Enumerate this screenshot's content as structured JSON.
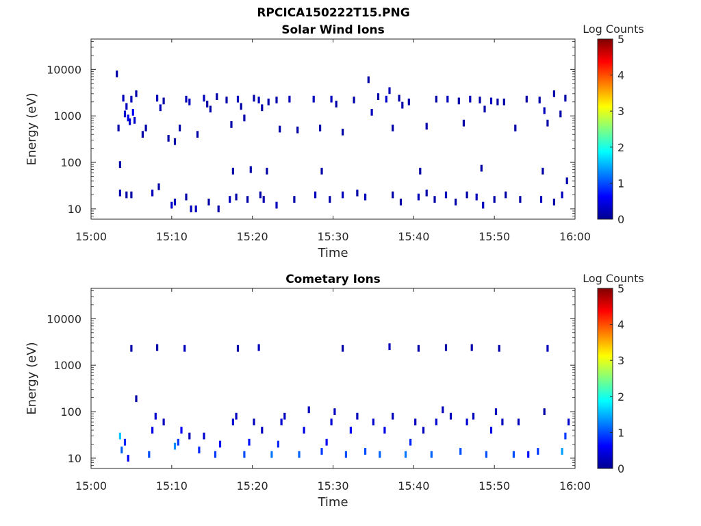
{
  "figure": {
    "title": "RPCICA150222T15.PNG"
  },
  "chart_data": [
    {
      "type": "heatmap",
      "title": "Solar Wind Ions",
      "xlabel": "Time",
      "ylabel": "Energy (eV)",
      "x_ticks": [
        "15:00",
        "15:10",
        "15:20",
        "15:30",
        "15:40",
        "15:50",
        "16:00"
      ],
      "xlim": [
        "15:00",
        "16:00"
      ],
      "y_scale": "log",
      "y_ticks": [
        "10",
        "100",
        "1000",
        "10000"
      ],
      "ylim": [
        6,
        45000
      ],
      "colorbar": {
        "label": "Log Counts",
        "ticks": [
          "0",
          "1",
          "2",
          "3",
          "4",
          "5"
        ],
        "range": [
          0,
          5
        ],
        "colormap": "jet"
      },
      "cells": [
        [
          3.2,
          8000,
          0.2
        ],
        [
          3.4,
          550,
          0.2
        ],
        [
          3.6,
          90,
          0.2
        ],
        [
          4.0,
          2400,
          0.3
        ],
        [
          4.2,
          1100,
          0.4
        ],
        [
          4.4,
          1600,
          0.3
        ],
        [
          4.6,
          900,
          0.5
        ],
        [
          4.8,
          750,
          0.4
        ],
        [
          5.0,
          2300,
          0.3
        ],
        [
          5.2,
          1200,
          0.6
        ],
        [
          5.4,
          800,
          0.4
        ],
        [
          5.6,
          3000,
          0.2
        ],
        [
          6.4,
          400,
          0.2
        ],
        [
          6.8,
          550,
          0.2
        ],
        [
          8.2,
          2400,
          0.3
        ],
        [
          8.6,
          1500,
          0.3
        ],
        [
          9.0,
          2100,
          0.2
        ],
        [
          9.6,
          330,
          0.2
        ],
        [
          10.4,
          280,
          0.2
        ],
        [
          11.0,
          550,
          0.2
        ],
        [
          11.8,
          2300,
          0.3
        ],
        [
          12.2,
          2000,
          0.3
        ],
        [
          13.2,
          400,
          0.2
        ],
        [
          14.0,
          2400,
          0.3
        ],
        [
          14.4,
          1800,
          0.2
        ],
        [
          14.8,
          1400,
          0.2
        ],
        [
          15.6,
          2600,
          0.2
        ],
        [
          16.8,
          2200,
          0.2
        ],
        [
          17.4,
          650,
          0.2
        ],
        [
          18.2,
          2300,
          0.3
        ],
        [
          18.6,
          1600,
          0.2
        ],
        [
          19.0,
          900,
          0.2
        ],
        [
          20.2,
          2400,
          0.2
        ],
        [
          20.8,
          2200,
          0.3
        ],
        [
          21.2,
          1500,
          0.2
        ],
        [
          22.0,
          2000,
          0.2
        ],
        [
          23.0,
          2200,
          0.2
        ],
        [
          23.4,
          520,
          0.2
        ],
        [
          24.6,
          2300,
          0.3
        ],
        [
          25.6,
          500,
          0.2
        ],
        [
          27.6,
          2300,
          0.3
        ],
        [
          28.4,
          550,
          0.2
        ],
        [
          29.8,
          2300,
          0.3
        ],
        [
          30.4,
          1800,
          0.2
        ],
        [
          31.2,
          450,
          0.2
        ],
        [
          32.6,
          2200,
          0.2
        ],
        [
          34.4,
          6000,
          0.2
        ],
        [
          34.8,
          1200,
          0.3
        ],
        [
          35.6,
          2600,
          0.2
        ],
        [
          36.6,
          2300,
          0.4
        ],
        [
          37.0,
          3500,
          0.3
        ],
        [
          37.4,
          550,
          0.2
        ],
        [
          38.2,
          2400,
          0.2
        ],
        [
          38.6,
          1700,
          0.2
        ],
        [
          39.4,
          2000,
          0.2
        ],
        [
          41.6,
          600,
          0.2
        ],
        [
          42.8,
          2300,
          0.2
        ],
        [
          44.2,
          2300,
          0.3
        ],
        [
          45.6,
          2100,
          0.2
        ],
        [
          46.2,
          700,
          0.2
        ],
        [
          47.0,
          2300,
          0.3
        ],
        [
          48.2,
          2200,
          0.2
        ],
        [
          48.8,
          1400,
          0.2
        ],
        [
          49.6,
          2100,
          0.3
        ],
        [
          50.4,
          2000,
          0.2
        ],
        [
          51.2,
          2000,
          0.2
        ],
        [
          52.6,
          550,
          0.2
        ],
        [
          54.0,
          2300,
          0.2
        ],
        [
          55.6,
          2200,
          0.2
        ],
        [
          56.2,
          1300,
          0.3
        ],
        [
          56.6,
          700,
          0.2
        ],
        [
          57.4,
          3000,
          0.2
        ],
        [
          58.2,
          1100,
          0.2
        ],
        [
          58.8,
          2400,
          0.2
        ],
        [
          3.6,
          22,
          0.3
        ],
        [
          4.4,
          20,
          0.2
        ],
        [
          5.0,
          20,
          0.2
        ],
        [
          7.6,
          22,
          0.3
        ],
        [
          8.4,
          30,
          0.2
        ],
        [
          10.0,
          12,
          0.4
        ],
        [
          10.4,
          14,
          0.3
        ],
        [
          11.8,
          18,
          0.2
        ],
        [
          12.4,
          10,
          0.3
        ],
        [
          13.0,
          10,
          0.3
        ],
        [
          14.6,
          14,
          0.2
        ],
        [
          15.8,
          10,
          0.2
        ],
        [
          17.2,
          16,
          0.3
        ],
        [
          18.0,
          18,
          0.2
        ],
        [
          19.4,
          16,
          0.2
        ],
        [
          21.0,
          20,
          0.2
        ],
        [
          21.4,
          16,
          0.2
        ],
        [
          23.0,
          12,
          0.3
        ],
        [
          25.2,
          16,
          0.2
        ],
        [
          27.8,
          20,
          0.3
        ],
        [
          29.6,
          16,
          0.2
        ],
        [
          31.2,
          20,
          0.3
        ],
        [
          33.0,
          22,
          0.2
        ],
        [
          34.0,
          18,
          0.3
        ],
        [
          37.4,
          20,
          0.2
        ],
        [
          38.4,
          14,
          0.2
        ],
        [
          40.6,
          18,
          0.3
        ],
        [
          41.6,
          22,
          0.2
        ],
        [
          42.6,
          16,
          0.2
        ],
        [
          44.0,
          20,
          0.3
        ],
        [
          45.2,
          14,
          0.2
        ],
        [
          46.6,
          20,
          0.2
        ],
        [
          47.8,
          18,
          0.3
        ],
        [
          48.6,
          12,
          0.3
        ],
        [
          50.0,
          16,
          0.2
        ],
        [
          51.4,
          20,
          0.2
        ],
        [
          53.2,
          16,
          0.2
        ],
        [
          55.8,
          16,
          0.3
        ],
        [
          57.4,
          14,
          0.2
        ],
        [
          58.4,
          20,
          0.3
        ],
        [
          59.0,
          40,
          0.2
        ],
        [
          17.6,
          65,
          0.2
        ],
        [
          19.8,
          70,
          0.2
        ],
        [
          21.8,
          65,
          0.2
        ],
        [
          28.6,
          65,
          0.2
        ],
        [
          40.8,
          65,
          0.2
        ],
        [
          48.4,
          75,
          0.2
        ],
        [
          56.0,
          65,
          0.2
        ]
      ]
    },
    {
      "type": "heatmap",
      "title": "Cometary Ions",
      "xlabel": "Time",
      "ylabel": "Energy (eV)",
      "x_ticks": [
        "15:00",
        "15:10",
        "15:20",
        "15:30",
        "15:40",
        "15:50",
        "16:00"
      ],
      "xlim": [
        "15:00",
        "16:00"
      ],
      "y_scale": "log",
      "y_ticks": [
        "10",
        "100",
        "1000",
        "10000"
      ],
      "ylim": [
        6,
        45000
      ],
      "colorbar": {
        "label": "Log Counts",
        "ticks": [
          "0",
          "1",
          "2",
          "3",
          "4",
          "5"
        ],
        "range": [
          0,
          5
        ],
        "colormap": "jet"
      },
      "cells": [
        [
          5.0,
          2300,
          0.2
        ],
        [
          8.2,
          2400,
          0.2
        ],
        [
          11.6,
          2300,
          0.3
        ],
        [
          18.2,
          2300,
          0.2
        ],
        [
          20.8,
          2400,
          0.3
        ],
        [
          31.2,
          2300,
          0.2
        ],
        [
          37.0,
          2500,
          0.3
        ],
        [
          40.6,
          2300,
          0.2
        ],
        [
          44.0,
          2400,
          0.2
        ],
        [
          47.2,
          2400,
          0.2
        ],
        [
          50.6,
          2300,
          0.2
        ],
        [
          56.6,
          2300,
          0.3
        ],
        [
          3.6,
          30,
          1.6
        ],
        [
          3.8,
          15,
          1.1
        ],
        [
          4.2,
          22,
          0.8
        ],
        [
          4.6,
          10,
          0.6
        ],
        [
          5.6,
          190,
          0.2
        ],
        [
          7.2,
          12,
          1.0
        ],
        [
          7.6,
          40,
          0.5
        ],
        [
          8.0,
          80,
          0.4
        ],
        [
          9.0,
          60,
          0.3
        ],
        [
          10.4,
          18,
          1.3
        ],
        [
          10.8,
          22,
          0.9
        ],
        [
          11.2,
          40,
          0.6
        ],
        [
          12.2,
          30,
          0.3
        ],
        [
          13.4,
          15,
          0.8
        ],
        [
          14.0,
          30,
          0.4
        ],
        [
          15.4,
          12,
          0.9
        ],
        [
          16.0,
          20,
          0.6
        ],
        [
          17.6,
          60,
          0.4
        ],
        [
          18.0,
          80,
          0.3
        ],
        [
          19.0,
          12,
          1.0
        ],
        [
          19.6,
          22,
          0.7
        ],
        [
          20.2,
          60,
          0.3
        ],
        [
          21.2,
          40,
          0.3
        ],
        [
          22.4,
          12,
          1.2
        ],
        [
          23.2,
          20,
          0.8
        ],
        [
          23.6,
          60,
          0.4
        ],
        [
          24.0,
          80,
          0.3
        ],
        [
          25.8,
          12,
          1.1
        ],
        [
          26.4,
          40,
          0.5
        ],
        [
          27.0,
          110,
          0.3
        ],
        [
          28.6,
          14,
          0.9
        ],
        [
          29.2,
          22,
          0.6
        ],
        [
          29.8,
          60,
          0.4
        ],
        [
          30.2,
          100,
          0.3
        ],
        [
          31.6,
          12,
          1.0
        ],
        [
          32.2,
          40,
          0.6
        ],
        [
          33.0,
          80,
          0.3
        ],
        [
          34.0,
          14,
          1.0
        ],
        [
          35.0,
          60,
          0.4
        ],
        [
          35.8,
          12,
          1.1
        ],
        [
          36.4,
          40,
          0.5
        ],
        [
          37.4,
          80,
          0.3
        ],
        [
          39.0,
          12,
          1.2
        ],
        [
          39.6,
          22,
          0.8
        ],
        [
          40.2,
          60,
          0.3
        ],
        [
          41.2,
          40,
          0.3
        ],
        [
          42.2,
          12,
          1.1
        ],
        [
          42.8,
          60,
          0.4
        ],
        [
          43.6,
          110,
          0.3
        ],
        [
          44.6,
          80,
          0.3
        ],
        [
          45.8,
          14,
          1.0
        ],
        [
          46.6,
          60,
          0.4
        ],
        [
          47.4,
          80,
          0.3
        ],
        [
          49.0,
          12,
          1.0
        ],
        [
          49.6,
          40,
          0.5
        ],
        [
          50.2,
          100,
          0.3
        ],
        [
          51.0,
          60,
          0.3
        ],
        [
          52.4,
          12,
          1.0
        ],
        [
          53.0,
          60,
          0.3
        ],
        [
          54.2,
          12,
          0.7
        ],
        [
          55.4,
          14,
          0.9
        ],
        [
          56.2,
          100,
          0.2
        ],
        [
          58.4,
          14,
          1.4
        ],
        [
          58.8,
          30,
          0.9
        ],
        [
          59.2,
          60,
          0.4
        ]
      ]
    }
  ]
}
